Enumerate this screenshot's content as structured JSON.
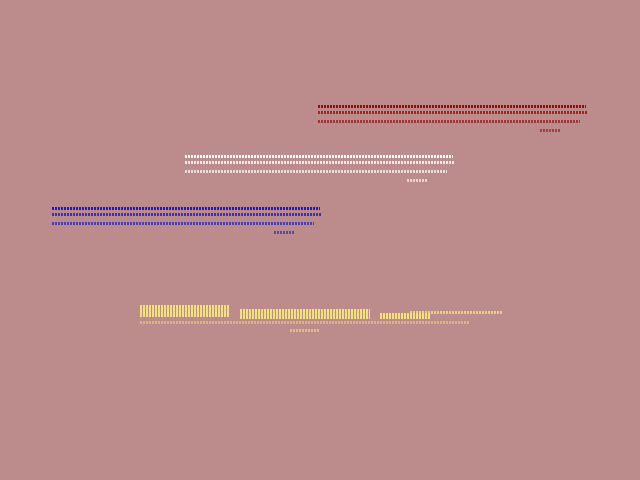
{
  "background_color": "#bb8c8b",
  "glitch_blocks": [
    {
      "name": "red-garbled-text",
      "color": "#9b0d0d"
    },
    {
      "name": "white-garbled-text",
      "color": "#ffffff"
    },
    {
      "name": "blue-garbled-text",
      "color": "#1a1ad0"
    },
    {
      "name": "yellow-garbled-text",
      "color": "#f2e27a"
    }
  ]
}
